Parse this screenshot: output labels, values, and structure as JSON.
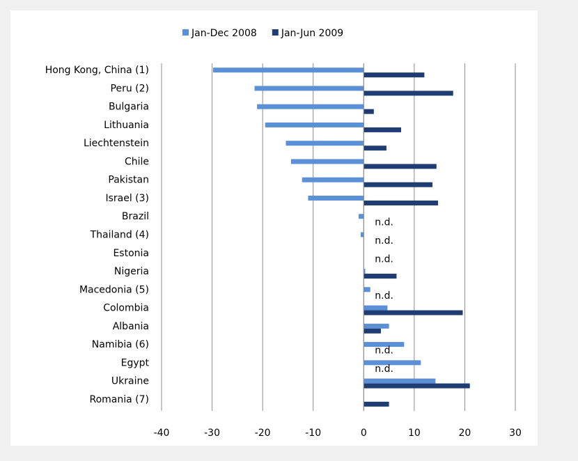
{
  "chart_data": {
    "type": "hbar",
    "categories": [
      "Hong Kong, China (1)",
      "Peru (2)",
      "Bulgaria",
      "Lithuania",
      "Liechtenstein",
      "Chile",
      "Pakistan",
      "Israel (3)",
      "Brazil",
      "Thailand (4)",
      "Estonia",
      "Nigeria",
      "Macedonia (5)",
      "Colombia",
      "Albania",
      "Namibia (6)",
      "Egypt",
      "Ukraine",
      "Romania (7)"
    ],
    "series": [
      {
        "name": "Jan-Dec 2008",
        "color": "#5b8fd6",
        "values": [
          -29.8,
          -21.6,
          -21.1,
          -19.5,
          -15.4,
          -14.4,
          -12.2,
          -11.0,
          -1.0,
          -0.6,
          0,
          0.3,
          1.3,
          4.7,
          5.0,
          8.0,
          11.3,
          14.2,
          0
        ]
      },
      {
        "name": "Jan-Jun 2009",
        "color": "#1f3d73",
        "values": [
          12.0,
          17.7,
          2.0,
          7.4,
          4.5,
          14.4,
          13.6,
          14.7,
          null,
          null,
          null,
          6.5,
          null,
          19.6,
          3.4,
          null,
          null,
          21.0,
          5.0
        ],
        "value_labels": [
          null,
          null,
          null,
          null,
          null,
          null,
          null,
          null,
          "n.d.",
          "n.d.",
          "n.d.",
          null,
          "n.d.",
          null,
          null,
          "n.d.",
          "n.d.",
          null,
          null
        ]
      }
    ],
    "xlim": [
      -40,
      30
    ],
    "xticks": [
      -40,
      -30,
      -20,
      -10,
      0,
      10,
      20,
      30
    ],
    "grid": true,
    "legend": "top"
  }
}
